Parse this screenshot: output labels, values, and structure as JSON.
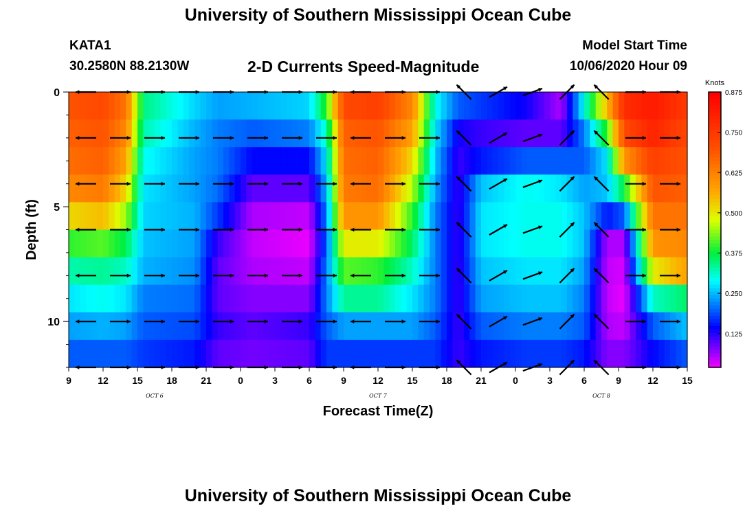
{
  "header": {
    "title": "University of Southern Mississippi Ocean Cube",
    "station_id": "KATA1",
    "station_coords": "30.2580N 88.2130W",
    "plot_title": "2-D Currents Speed-Magnitude",
    "model_label": "Model Start Time",
    "model_time": "10/06/2020 Hour 09"
  },
  "footer": {
    "title": "University of Southern Mississippi Ocean Cube"
  },
  "chart_data": {
    "type": "heatmap",
    "title": "2-D Currents Speed-Magnitude",
    "xlabel": "Forecast Time(Z)",
    "ylabel": "Depth (ft)",
    "x_tick_labels": [
      "9",
      "12",
      "15",
      "18",
      "21",
      "0",
      "3",
      "6",
      "9",
      "12",
      "15",
      "18",
      "21",
      "0",
      "3",
      "6",
      "9",
      "12",
      "15"
    ],
    "x_range_hours": [
      0,
      54
    ],
    "date_labels": [
      {
        "label": "OCT 6",
        "hour": 7.5
      },
      {
        "label": "OCT 7",
        "hour": 27
      },
      {
        "label": "OCT 8",
        "hour": 46.5
      }
    ],
    "y_ticks": [
      0,
      5,
      10
    ],
    "y_range_ft": [
      0,
      12
    ],
    "colorbar": {
      "unit": "Knots",
      "tick_labels": [
        "0.875",
        "0.750",
        "0.625",
        "0.500",
        "0.375",
        "0.250",
        "0.125"
      ],
      "range": [
        0.02,
        0.875
      ]
    },
    "speed_keyframes_knots": [
      {
        "hour": 0,
        "values": [
          0.7,
          0.68,
          0.66,
          0.62,
          0.52,
          0.4,
          0.33,
          0.28,
          0.24,
          0.2
        ]
      },
      {
        "hour": 3,
        "values": [
          0.72,
          0.7,
          0.68,
          0.64,
          0.55,
          0.42,
          0.34,
          0.3,
          0.25,
          0.2
        ]
      },
      {
        "hour": 5,
        "values": [
          0.65,
          0.62,
          0.58,
          0.52,
          0.45,
          0.37,
          0.32,
          0.28,
          0.24,
          0.2
        ]
      },
      {
        "hour": 6.5,
        "values": [
          0.35,
          0.33,
          0.3,
          0.28,
          0.27,
          0.26,
          0.25,
          0.22,
          0.2,
          0.18
        ]
      },
      {
        "hour": 11,
        "values": [
          0.27,
          0.25,
          0.24,
          0.24,
          0.25,
          0.24,
          0.23,
          0.21,
          0.19,
          0.16
        ]
      },
      {
        "hour": 13,
        "values": [
          0.24,
          0.22,
          0.22,
          0.21,
          0.18,
          0.12,
          0.1,
          0.1,
          0.12,
          0.1
        ]
      },
      {
        "hour": 16,
        "values": [
          0.25,
          0.2,
          0.15,
          0.1,
          0.06,
          0.05,
          0.06,
          0.08,
          0.1,
          0.09
        ]
      },
      {
        "hour": 21,
        "values": [
          0.27,
          0.22,
          0.15,
          0.1,
          0.05,
          0.03,
          0.05,
          0.08,
          0.12,
          0.1
        ]
      },
      {
        "hour": 22.5,
        "values": [
          0.4,
          0.32,
          0.28,
          0.25,
          0.22,
          0.2,
          0.22,
          0.22,
          0.2,
          0.18
        ]
      },
      {
        "hour": 24,
        "values": [
          0.72,
          0.68,
          0.66,
          0.64,
          0.6,
          0.5,
          0.42,
          0.34,
          0.24,
          0.18
        ]
      },
      {
        "hour": 27,
        "values": [
          0.74,
          0.7,
          0.68,
          0.66,
          0.6,
          0.5,
          0.4,
          0.34,
          0.24,
          0.18
        ]
      },
      {
        "hour": 30,
        "values": [
          0.62,
          0.58,
          0.52,
          0.46,
          0.4,
          0.36,
          0.32,
          0.28,
          0.24,
          0.18
        ]
      },
      {
        "hour": 32,
        "values": [
          0.3,
          0.28,
          0.26,
          0.24,
          0.22,
          0.22,
          0.22,
          0.22,
          0.2,
          0.18
        ]
      },
      {
        "hour": 34,
        "values": [
          0.2,
          0.14,
          0.12,
          0.12,
          0.12,
          0.12,
          0.12,
          0.12,
          0.12,
          0.12
        ]
      },
      {
        "hour": 36,
        "values": [
          0.18,
          0.12,
          0.16,
          0.26,
          0.28,
          0.28,
          0.26,
          0.24,
          0.2,
          0.16
        ]
      },
      {
        "hour": 40,
        "values": [
          0.14,
          0.1,
          0.2,
          0.3,
          0.3,
          0.3,
          0.28,
          0.26,
          0.22,
          0.18
        ]
      },
      {
        "hour": 43,
        "values": [
          0.06,
          0.1,
          0.2,
          0.28,
          0.3,
          0.3,
          0.28,
          0.26,
          0.22,
          0.18
        ]
      },
      {
        "hour": 45,
        "values": [
          0.3,
          0.22,
          0.2,
          0.24,
          0.26,
          0.26,
          0.24,
          0.22,
          0.2,
          0.16
        ]
      },
      {
        "hour": 47,
        "values": [
          0.55,
          0.4,
          0.28,
          0.26,
          0.16,
          0.06,
          0.05,
          0.05,
          0.06,
          0.08
        ]
      },
      {
        "hour": 48.5,
        "values": [
          0.78,
          0.72,
          0.6,
          0.38,
          0.2,
          0.06,
          0.04,
          0.03,
          0.05,
          0.08
        ]
      },
      {
        "hour": 51,
        "values": [
          0.82,
          0.8,
          0.74,
          0.7,
          0.65,
          0.6,
          0.5,
          0.32,
          0.2,
          0.15
        ]
      },
      {
        "hour": 54,
        "values": [
          0.75,
          0.72,
          0.7,
          0.68,
          0.65,
          0.62,
          0.58,
          0.36,
          0.26,
          0.2
        ]
      }
    ],
    "arrow_hours": [
      1.5,
      4.5,
      7.5,
      10.5,
      13.5,
      16.5,
      19.5,
      22.5,
      25.5,
      28.5,
      31.5,
      34.5,
      37.5,
      40.5,
      43.5,
      46.5,
      49.5,
      52.5
    ],
    "arrow_depths_ft": [
      0,
      2,
      4,
      6,
      8,
      10,
      12
    ],
    "arrow_directions_deg": [
      180,
      0,
      0,
      0,
      0,
      0,
      0,
      0,
      180,
      0,
      0,
      135,
      30,
      20,
      45,
      135,
      0,
      0
    ]
  }
}
